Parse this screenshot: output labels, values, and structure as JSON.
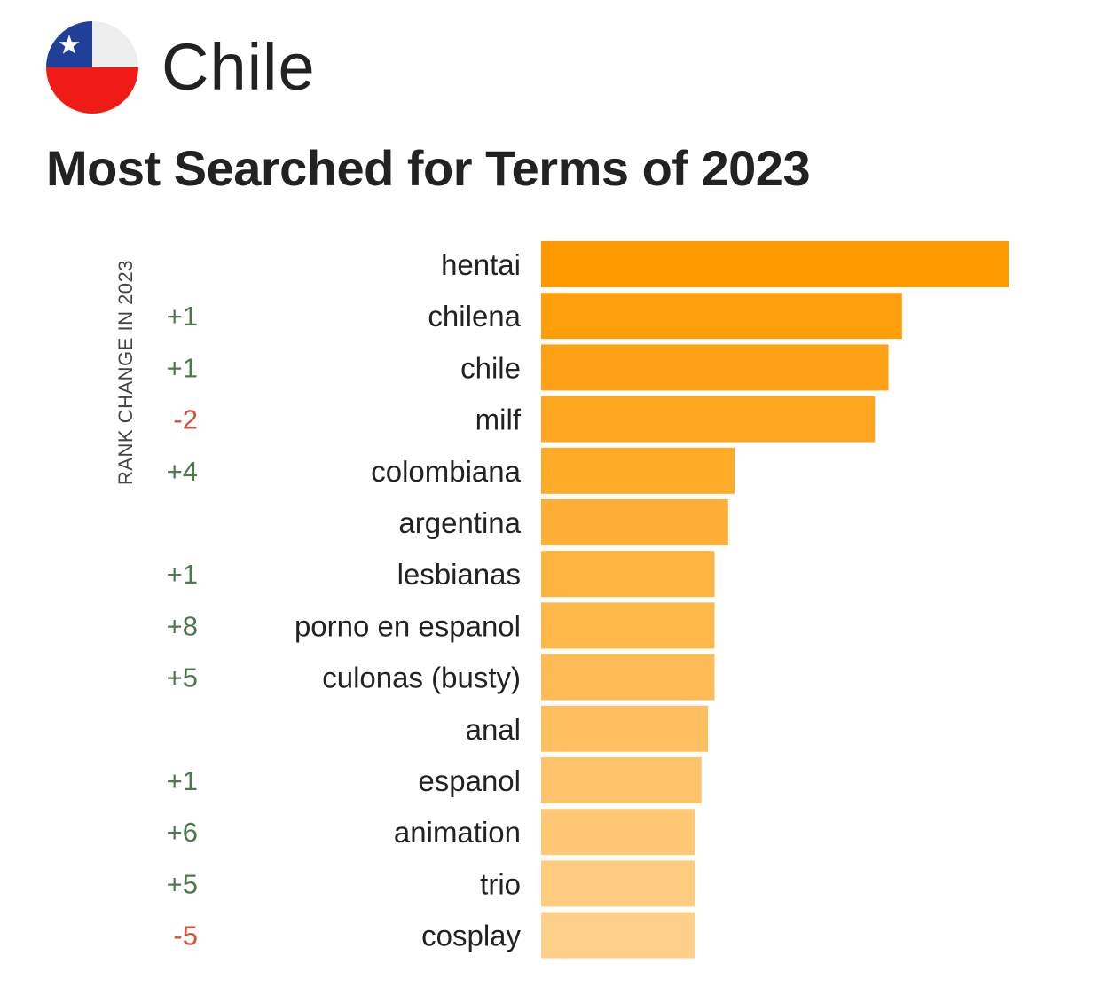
{
  "header": {
    "country": "Chile",
    "title": "Most Searched for Terms of 2023"
  },
  "flag": {
    "blue": "#1f3f99",
    "white": "#eeeeee",
    "red": "#ef1b17",
    "star": "#ffffff"
  },
  "colors": {
    "positive_change": "#4c7a4c",
    "negative_change": "#d4533a",
    "bar_start": "#ff9a00",
    "bar_end": "#ffd08a",
    "term_label": "#222222"
  },
  "chart_data": {
    "type": "bar",
    "orientation": "horizontal",
    "title": "Most Searched for Terms of 2023",
    "rank_change_label": "RANK CHANGE IN 2023",
    "categories": [
      "hentai",
      "chilena",
      "chile",
      "milf",
      "colombiana",
      "argentina",
      "lesbianas",
      "porno en espanol",
      "culonas (busty)",
      "anal",
      "espanol",
      "animation",
      "trio",
      "cosplay"
    ],
    "rank_change": [
      "",
      "+1",
      "+1",
      "-2",
      "+4",
      "",
      "+1",
      "+8",
      "+5",
      "",
      "+1",
      "+6",
      "+5",
      "-5"
    ],
    "values": [
      100,
      77.2,
      74.3,
      71.4,
      41.4,
      40,
      37.1,
      37.1,
      37.1,
      35.7,
      34.3,
      32.9,
      32.9,
      32.9
    ],
    "xlim": [
      0,
      100
    ],
    "grid": false,
    "legend": "none"
  }
}
